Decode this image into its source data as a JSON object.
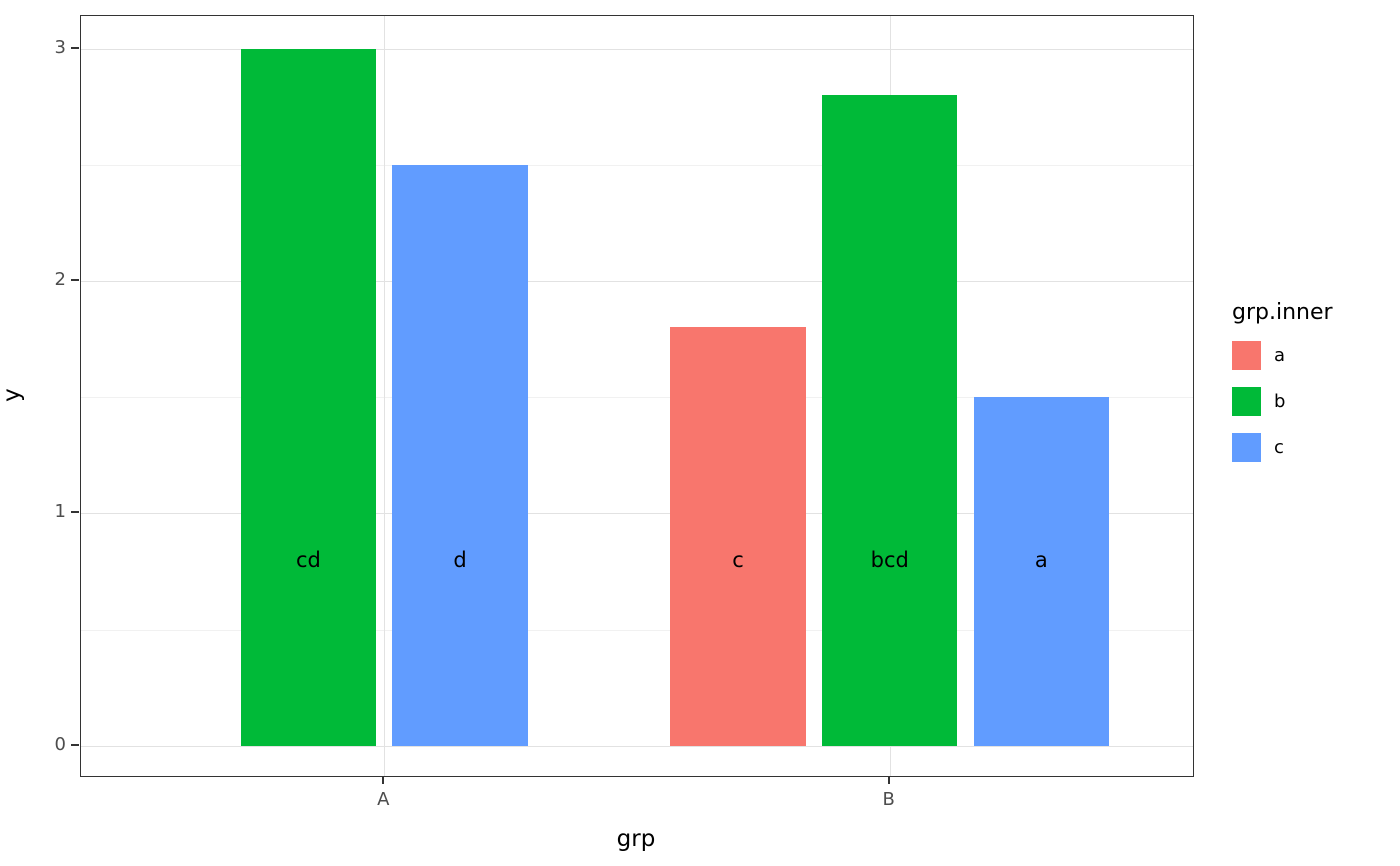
{
  "chart_data": {
    "type": "bar",
    "title": "",
    "xlabel": "grp",
    "ylabel": "y",
    "legend_position": "right",
    "grid": true,
    "categories": [
      {
        "label": "A",
        "x": 1
      },
      {
        "label": "B",
        "x": 2
      }
    ],
    "xlim": [
      0.4,
      2.6
    ],
    "ylim": [
      -0.13,
      3.14
    ],
    "y_ticks": [
      0,
      1,
      2,
      3
    ],
    "y_minor": [
      0.5,
      1.5,
      2.5
    ],
    "bar_width": 0.268,
    "label_y": 0.8,
    "colors": {
      "a": "#F8766D",
      "b": "#00BA38",
      "c": "#619CFF"
    },
    "legend": {
      "title": "grp.inner",
      "entries": [
        {
          "key": "a",
          "color": "#F8766D"
        },
        {
          "key": "b",
          "color": "#00BA38"
        },
        {
          "key": "c",
          "color": "#619CFF"
        }
      ]
    },
    "bars": [
      {
        "group": "A",
        "series": "b",
        "x": 0.85,
        "value": 3.0,
        "label": "cd"
      },
      {
        "group": "A",
        "series": "c",
        "x": 1.15,
        "value": 2.5,
        "label": "d"
      },
      {
        "group": "B",
        "series": "a",
        "x": 1.7,
        "value": 1.8,
        "label": "c"
      },
      {
        "group": "B",
        "series": "b",
        "x": 2.0,
        "value": 2.8,
        "label": "bcd"
      },
      {
        "group": "B",
        "series": "c",
        "x": 2.3,
        "value": 1.5,
        "label": "a"
      }
    ]
  }
}
